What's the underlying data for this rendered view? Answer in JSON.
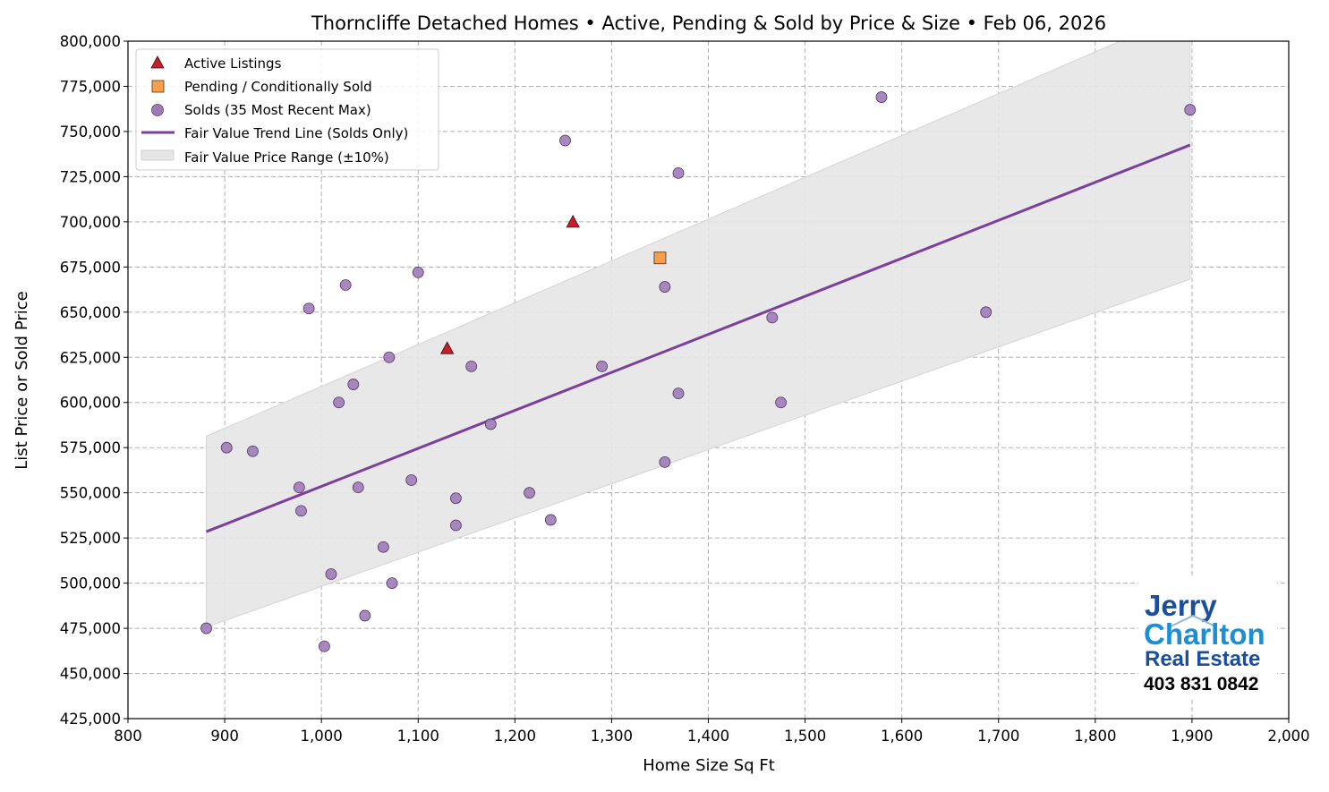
{
  "chart_data": {
    "type": "scatter",
    "title": "Thorncliffe Detached Homes • Active, Pending & Sold by Price & Size • Feb 06, 2026",
    "xlabel": "Home Size Sq Ft",
    "ylabel": "List Price or Sold Price",
    "xlim": [
      800,
      2000
    ],
    "ylim": [
      425000,
      800000
    ],
    "x_ticks": [
      800,
      900,
      1000,
      1100,
      1200,
      1300,
      1400,
      1500,
      1600,
      1700,
      1800,
      1900,
      2000
    ],
    "y_ticks": [
      425000,
      450000,
      475000,
      500000,
      525000,
      550000,
      575000,
      600000,
      625000,
      650000,
      675000,
      700000,
      725000,
      750000,
      775000,
      800000
    ],
    "grid": true,
    "legend_position": "top-left",
    "colors": {
      "active": "#c4202c",
      "pending": "#f5a04f",
      "sold": "#9e7bb8",
      "trend": "#7b3f9e",
      "band": "#e6e6e6"
    },
    "series": [
      {
        "name": "Active Listings",
        "marker": "triangle",
        "points": [
          [
            1130,
            630000
          ],
          [
            1260,
            700000
          ]
        ]
      },
      {
        "name": "Pending / Conditionally Sold",
        "marker": "square",
        "points": [
          [
            1350,
            680000
          ]
        ]
      },
      {
        "name": "Solds (35 Most Recent Max)",
        "marker": "circle",
        "points": [
          [
            881,
            475000
          ],
          [
            902,
            575000
          ],
          [
            929,
            573000
          ],
          [
            977,
            553000
          ],
          [
            979,
            540000
          ],
          [
            987,
            652000
          ],
          [
            1003,
            465000
          ],
          [
            1010,
            505000
          ],
          [
            1018,
            600000
          ],
          [
            1025,
            665000
          ],
          [
            1033,
            610000
          ],
          [
            1038,
            553000
          ],
          [
            1045,
            482000
          ],
          [
            1064,
            520000
          ],
          [
            1070,
            625000
          ],
          [
            1073,
            500000
          ],
          [
            1093,
            557000
          ],
          [
            1100,
            672000
          ],
          [
            1139,
            547000
          ],
          [
            1139,
            532000
          ],
          [
            1155,
            620000
          ],
          [
            1175,
            588000
          ],
          [
            1215,
            550000
          ],
          [
            1237,
            535000
          ],
          [
            1252,
            745000
          ],
          [
            1290,
            620000
          ],
          [
            1355,
            664000
          ],
          [
            1355,
            567000
          ],
          [
            1369,
            727000
          ],
          [
            1369,
            605000
          ],
          [
            1466,
            647000
          ],
          [
            1475,
            600000
          ],
          [
            1579,
            769000
          ],
          [
            1687,
            650000
          ],
          [
            1898,
            762000
          ]
        ]
      },
      {
        "name": "Fair Value Trend Line (Solds Only)",
        "type": "line",
        "x": [
          881,
          1898
        ],
        "y": [
          528500,
          742500
        ]
      },
      {
        "name": "Fair Value Price Range (±10%)",
        "type": "band",
        "x": [
          881,
          1898
        ],
        "lower": [
          475650,
          668250
        ],
        "upper": [
          581350,
          816750
        ]
      }
    ]
  },
  "logo": {
    "line1": "Jerry",
    "line2": "Charlton",
    "line3": "Real Estate",
    "phone": "403 831 0842"
  }
}
